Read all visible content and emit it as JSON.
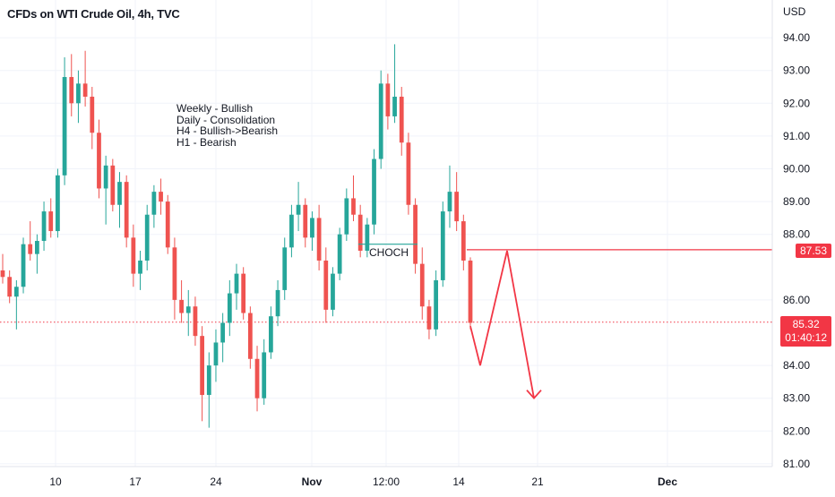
{
  "title": "CFDs on WTI Crude Oil, 4h, TVC",
  "notes": [
    "Weekly - Bullish",
    "Daily - Consolidation",
    "H4 - Bullish->Bearish",
    "H1 - Bearish"
  ],
  "annotation_label": "CHOCH",
  "currency": "USD",
  "colors": {
    "up": "#26a69a",
    "down": "#ef5350",
    "drawing": "#f23645",
    "grid": "#f0f3fa",
    "axis_text": "#131722"
  },
  "price_tags": {
    "level": "87.53",
    "last": "85.32",
    "countdown": "01:40:12"
  },
  "chart_data": {
    "type": "candlestick",
    "title": "CFDs on WTI Crude Oil, 4h, TVC",
    "y_unit": "USD",
    "ylim": [
      80.9,
      95.0
    ],
    "y_ticks": [
      "94.00",
      "93.00",
      "92.00",
      "91.00",
      "90.00",
      "89.00",
      "88.00",
      "86.00",
      "84.00",
      "83.00",
      "82.00",
      "81.00"
    ],
    "x_ticks": [
      "10",
      "17",
      "24",
      "Nov",
      "12:00",
      "14",
      "21",
      "Dec"
    ],
    "horizontal_levels": [
      87.53,
      85.32
    ],
    "choch_level": 87.7,
    "projection_path": [
      85.2,
      84.0,
      87.5,
      83.0
    ],
    "candles_ohlc": [
      [
        86.9,
        87.4,
        86.5,
        86.7
      ],
      [
        86.7,
        86.9,
        85.9,
        86.1
      ],
      [
        86.1,
        86.6,
        85.1,
        86.4
      ],
      [
        86.4,
        87.9,
        86.2,
        87.7
      ],
      [
        87.7,
        88.4,
        87.2,
        87.4
      ],
      [
        87.4,
        88.0,
        86.8,
        87.8
      ],
      [
        87.8,
        89.0,
        87.5,
        88.7
      ],
      [
        88.7,
        89.1,
        87.9,
        88.1
      ],
      [
        88.1,
        90.0,
        87.9,
        89.8
      ],
      [
        89.8,
        93.4,
        89.5,
        92.8
      ],
      [
        92.8,
        93.5,
        91.6,
        92.0
      ],
      [
        92.0,
        93.0,
        91.4,
        92.6
      ],
      [
        92.6,
        93.6,
        91.9,
        92.2
      ],
      [
        92.2,
        92.5,
        90.6,
        91.1
      ],
      [
        91.1,
        91.5,
        89.1,
        89.4
      ],
      [
        89.4,
        90.4,
        88.3,
        90.1
      ],
      [
        90.1,
        90.3,
        88.7,
        88.9
      ],
      [
        88.9,
        89.9,
        88.2,
        89.6
      ],
      [
        89.6,
        89.8,
        87.6,
        87.9
      ],
      [
        87.9,
        88.3,
        86.4,
        86.8
      ],
      [
        86.8,
        87.5,
        86.3,
        87.2
      ],
      [
        87.2,
        88.9,
        86.9,
        88.6
      ],
      [
        88.6,
        89.5,
        88.2,
        89.3
      ],
      [
        89.3,
        89.7,
        88.6,
        89.0
      ],
      [
        89.0,
        89.2,
        87.4,
        87.6
      ],
      [
        87.6,
        87.9,
        85.4,
        86.0
      ],
      [
        86.0,
        86.6,
        85.3,
        85.6
      ],
      [
        85.6,
        86.3,
        84.9,
        85.8
      ],
      [
        85.8,
        86.1,
        84.6,
        84.9
      ],
      [
        84.9,
        85.2,
        82.3,
        83.1
      ],
      [
        83.1,
        84.4,
        82.1,
        84.0
      ],
      [
        84.0,
        85.1,
        83.5,
        84.7
      ],
      [
        84.7,
        85.6,
        84.1,
        85.3
      ],
      [
        85.3,
        86.6,
        84.9,
        86.2
      ],
      [
        86.2,
        87.1,
        85.7,
        86.8
      ],
      [
        86.8,
        87.0,
        85.4,
        85.6
      ],
      [
        85.6,
        85.8,
        83.9,
        84.2
      ],
      [
        84.2,
        84.6,
        82.6,
        83.0
      ],
      [
        83.0,
        84.8,
        82.8,
        84.4
      ],
      [
        84.4,
        85.8,
        84.2,
        85.5
      ],
      [
        85.5,
        86.6,
        85.2,
        86.3
      ],
      [
        86.3,
        87.9,
        86.0,
        87.6
      ],
      [
        87.6,
        88.9,
        87.3,
        88.6
      ],
      [
        88.6,
        89.6,
        88.1,
        88.9
      ],
      [
        88.9,
        89.1,
        87.6,
        87.9
      ],
      [
        87.9,
        88.7,
        87.5,
        88.5
      ],
      [
        88.5,
        88.9,
        86.9,
        87.2
      ],
      [
        87.2,
        87.6,
        85.3,
        85.7
      ],
      [
        85.7,
        87.0,
        85.5,
        86.8
      ],
      [
        86.8,
        88.2,
        86.6,
        88.0
      ],
      [
        88.0,
        89.4,
        87.8,
        89.1
      ],
      [
        89.1,
        89.8,
        88.4,
        88.6
      ],
      [
        88.6,
        88.9,
        87.3,
        87.5
      ],
      [
        87.5,
        88.5,
        87.3,
        88.3
      ],
      [
        88.3,
        90.6,
        88.0,
        90.3
      ],
      [
        90.3,
        93.0,
        90.0,
        92.6
      ],
      [
        92.6,
        92.9,
        91.2,
        91.6
      ],
      [
        91.6,
        93.8,
        91.4,
        92.2
      ],
      [
        92.2,
        92.5,
        90.4,
        90.8
      ],
      [
        90.8,
        91.1,
        88.6,
        88.9
      ],
      [
        88.9,
        89.1,
        86.8,
        87.1
      ],
      [
        87.1,
        87.6,
        85.4,
        85.8
      ],
      [
        85.8,
        86.0,
        84.8,
        85.1
      ],
      [
        85.1,
        86.9,
        84.9,
        86.6
      ],
      [
        86.6,
        89.0,
        86.4,
        88.7
      ],
      [
        88.7,
        90.1,
        88.2,
        89.3
      ],
      [
        89.3,
        89.9,
        88.1,
        88.4
      ],
      [
        88.4,
        88.6,
        86.9,
        87.2
      ],
      [
        87.2,
        87.3,
        85.1,
        85.3
      ]
    ]
  }
}
